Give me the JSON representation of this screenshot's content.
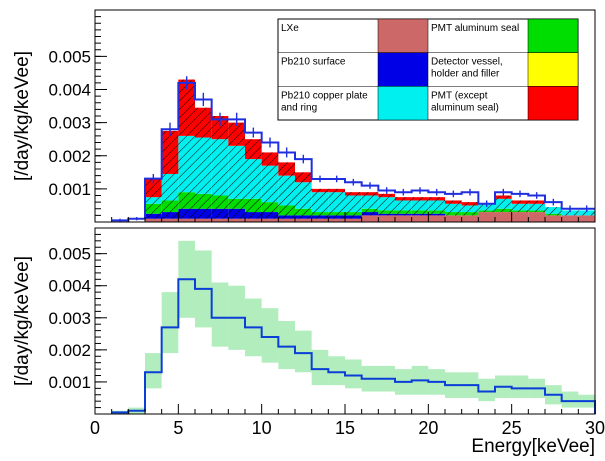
{
  "chart_data": [
    {
      "type": "area",
      "panel": "top",
      "ylabel": "[/day/kg/keVee]",
      "ylim": [
        0,
        0.0064
      ],
      "y_ticks": [
        0.001,
        0.002,
        0.003,
        0.004,
        0.005
      ],
      "y_tick_labels": [
        "0.001",
        "0.002",
        "0.003",
        "0.004",
        "0.005"
      ],
      "x_ticks": [
        0,
        5,
        10,
        15,
        20,
        25,
        30
      ],
      "x_tick_labels": [
        "",
        "",
        "",
        "",
        "",
        "",
        ""
      ],
      "bins_keVee": {
        "start": 1,
        "width": 1,
        "count": 29
      },
      "series": [
        {
          "name": "LXe",
          "color": "#cd6868",
          "hatch": false,
          "values": [
            0,
            0,
            0.0001,
            0.0001,
            0.0001,
            0.0001,
            0.0001,
            0.0001,
            0.0001,
            0.0001,
            0.0001,
            0.0001,
            0.0001,
            0.0001,
            0.0001,
            0.0002,
            0.0002,
            0.0002,
            0.0002,
            0.0002,
            0.0002,
            0.0002,
            0.0003,
            0.0003,
            0.0003,
            0.0003,
            0.0002,
            0.0002,
            0.0002
          ]
        },
        {
          "name": "Pb210 surface",
          "color": "#0000e6",
          "hatch": true,
          "values": [
            0,
            0,
            0.00015,
            0.0002,
            0.0003,
            0.0003,
            0.0003,
            0.0003,
            0.0002,
            0.0002,
            0.0001,
            0.0001,
            0.0001,
            0.0001,
            0.0001,
            0.0001,
            5e-05,
            5e-05,
            5e-05,
            5e-05,
            0,
            0,
            0,
            0,
            0,
            0,
            0,
            0,
            0
          ]
        },
        {
          "name": "PMT aluminum seal",
          "color": "#00dd00",
          "hatch": true,
          "values": [
            0,
            0,
            0.0003,
            0.00035,
            0.0005,
            0.00045,
            0.0004,
            0.0003,
            0.0004,
            0.0003,
            0.0003,
            0.0002,
            0.0001,
            0.0001,
            0.0001,
            0.0001,
            0.0001,
            0.0001,
            0.0001,
            0.0001,
            0.0001,
            0.0001,
            5e-05,
            0.0001,
            5e-05,
            5e-05,
            5e-05,
            0,
            0
          ]
        },
        {
          "name": "Detector vessel, holder and filler",
          "color": "#ffff00",
          "hatch": true,
          "values": [
            0,
            0,
            0,
            0,
            0,
            0,
            0,
            0,
            0,
            0,
            0,
            0,
            0,
            0,
            0,
            0,
            0,
            0,
            0,
            0,
            0,
            0,
            0,
            0,
            0,
            0,
            0,
            0,
            0
          ]
        },
        {
          "name": "Pb210 copper plate and ring",
          "color": "#00f0f0",
          "hatch": true,
          "values": [
            0,
            0,
            0.0002,
            0.0008,
            0.0017,
            0.0017,
            0.0017,
            0.0016,
            0.0012,
            0.0011,
            0.0009,
            0.0008,
            0.0006,
            0.0006,
            0.0005,
            0.0004,
            0.0004,
            0.0003,
            0.0003,
            0.0003,
            0.00025,
            0.0002,
            0.0002,
            0.0003,
            0.0002,
            0.0002,
            0.0002,
            0.00015,
            0.00015
          ]
        },
        {
          "name": "PMT (except aluminum seal)",
          "color": "#ff0000",
          "hatch": true,
          "values": [
            0,
            0,
            0.00055,
            0.0013,
            0.0017,
            0.0009,
            0.0007,
            0.0007,
            0.0006,
            0.0004,
            0.0004,
            0.0003,
            0.0001,
            0.0001,
            0.0001,
            0.0001,
            0.0001,
            0.0001,
            0.0001,
            0.0001,
            0.0001,
            0.0001,
            0,
            0.0001,
            0.0001,
            0.0001,
            0,
            0,
            0
          ]
        }
      ],
      "measured": {
        "values": [
          5e-05,
          0.0001,
          0.00131,
          0.0028,
          0.0042,
          0.0037,
          0.0031,
          0.0031,
          0.0027,
          0.0024,
          0.0021,
          0.0019,
          0.0013,
          0.0013,
          0.0012,
          0.0011,
          0.00095,
          0.0009,
          0.00095,
          0.0009,
          0.00085,
          0.0009,
          0.00055,
          0.0009,
          0.00085,
          0.0008,
          0.0006,
          0.0004,
          0.0004
        ],
        "errors": [
          5e-05,
          5e-05,
          0.00014,
          0.0002,
          0.0002,
          0.0002,
          0.0002,
          0.0002,
          0.00015,
          0.00015,
          0.00015,
          0.00013,
          0.0001,
          0.0001,
          0.0001,
          0.0001,
          0.0001,
          0.0001,
          0.0001,
          0.0001,
          0.0001,
          0.0001,
          0.0001,
          0.0001,
          0.0001,
          0.0001,
          0.0001,
          0.0001,
          0.0001
        ]
      },
      "legend": {
        "placement": "top-right",
        "rows": [
          [
            {
              "label": "LXe",
              "color": "#cd6868"
            },
            {
              "label": "PMT aluminum seal",
              "color": "#00dd00"
            }
          ],
          [
            {
              "label": "Pb210 surface",
              "color": "#0000e6"
            },
            {
              "label": "Detector vessel, holder and filler",
              "color": "#ffff00"
            }
          ],
          [
            {
              "label": "Pb210 copper plate and ring",
              "color": "#00f0f0"
            },
            {
              "label": "PMT (except aluminum seal)",
              "color": "#ff0000"
            }
          ]
        ]
      }
    },
    {
      "type": "line",
      "panel": "bottom",
      "xlabel": "Energy[keVee]",
      "ylabel": "[/day/kg/keVee]",
      "xlim": [
        0,
        30
      ],
      "ylim": [
        0,
        0.0058
      ],
      "y_ticks": [
        0.001,
        0.002,
        0.003,
        0.004,
        0.005
      ],
      "y_tick_labels": [
        "0.001",
        "0.002",
        "0.003",
        "0.004",
        "0.005"
      ],
      "x_ticks": [
        0,
        5,
        10,
        15,
        20,
        25,
        30
      ],
      "x_tick_labels": [
        "0",
        "5",
        "10",
        "15",
        "20",
        "25",
        "30"
      ],
      "bins_keVee": {
        "start": 1,
        "width": 1,
        "count": 29
      },
      "line_color": "#0a3ed6",
      "band_color": "#22cc44",
      "values": [
        5e-05,
        0.0001,
        0.0013,
        0.0027,
        0.0042,
        0.0039,
        0.003,
        0.003,
        0.0027,
        0.0024,
        0.0021,
        0.0019,
        0.0014,
        0.0013,
        0.0012,
        0.0011,
        0.0011,
        0.001,
        0.00105,
        0.001,
        0.0009,
        0.0009,
        0.0007,
        0.00085,
        0.0008,
        0.0008,
        0.0006,
        0.0004,
        0.0004
      ],
      "band_low": [
        0,
        0,
        0.0008,
        0.0019,
        0.003,
        0.0027,
        0.0021,
        0.002,
        0.0018,
        0.0016,
        0.0014,
        0.0013,
        0.0009,
        0.0009,
        0.0008,
        0.0007,
        0.0007,
        0.0006,
        0.0006,
        0.0006,
        0.0005,
        0.0005,
        0.0004,
        0.0005,
        0.0005,
        0.0005,
        0.0003,
        0.0002,
        0.0002
      ],
      "band_high": [
        0.0001,
        0.0002,
        0.0019,
        0.0038,
        0.0054,
        0.0051,
        0.0041,
        0.004,
        0.0036,
        0.0033,
        0.0029,
        0.0026,
        0.002,
        0.0018,
        0.0017,
        0.0015,
        0.0015,
        0.0014,
        0.0015,
        0.0014,
        0.0013,
        0.0013,
        0.0011,
        0.0012,
        0.0012,
        0.0011,
        0.0009,
        0.0007,
        0.0006
      ]
    }
  ]
}
